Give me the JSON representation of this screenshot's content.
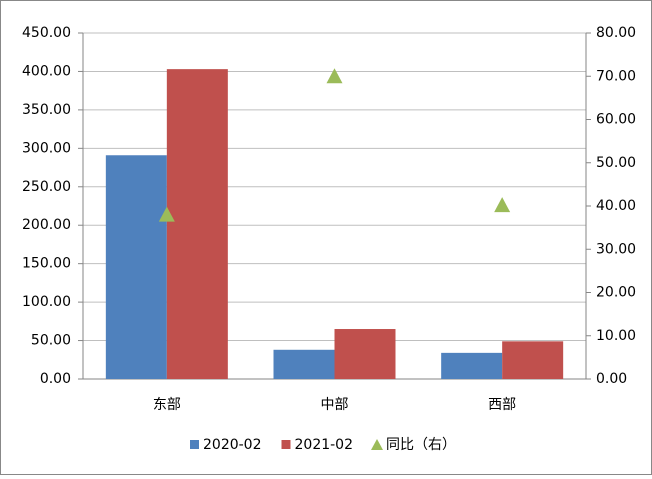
{
  "chart_data": {
    "type": "bar",
    "categories": [
      "东部",
      "中部",
      "西部"
    ],
    "series": [
      {
        "name": "2020-02",
        "color": "#4f81bd",
        "values": [
          291,
          38,
          34
        ]
      },
      {
        "name": "2021-02",
        "color": "#c0504d",
        "values": [
          403,
          65,
          49
        ]
      },
      {
        "name": "同比（右）",
        "color": "#9bbb59",
        "type": "scatter",
        "axis": "y2",
        "values": [
          38,
          70,
          40.2
        ]
      }
    ],
    "ylim": [
      0,
      450
    ],
    "yticks": [
      {
        "value": 0,
        "label": "0.00"
      },
      {
        "value": 50,
        "label": "50.00"
      },
      {
        "value": 100,
        "label": "100.00"
      },
      {
        "value": 150,
        "label": "150.00"
      },
      {
        "value": 200,
        "label": "200.00"
      },
      {
        "value": 250,
        "label": "250.00"
      },
      {
        "value": 300,
        "label": "300.00"
      },
      {
        "value": 350,
        "label": "350.00"
      },
      {
        "value": 400,
        "label": "400.00"
      },
      {
        "value": 450,
        "label": "450.00"
      }
    ],
    "y2lim": [
      0,
      80
    ],
    "y2ticks": [
      {
        "value": 0,
        "label": "0.00"
      },
      {
        "value": 10,
        "label": "10.00"
      },
      {
        "value": 20,
        "label": "20.00"
      },
      {
        "value": 30,
        "label": "30.00"
      },
      {
        "value": 40,
        "label": "40.00"
      },
      {
        "value": 50,
        "label": "50.00"
      },
      {
        "value": 60,
        "label": "60.00"
      },
      {
        "value": 70,
        "label": "70.00"
      },
      {
        "value": 80,
        "label": "80.00"
      }
    ],
    "grid": true,
    "legend": "bottom"
  }
}
